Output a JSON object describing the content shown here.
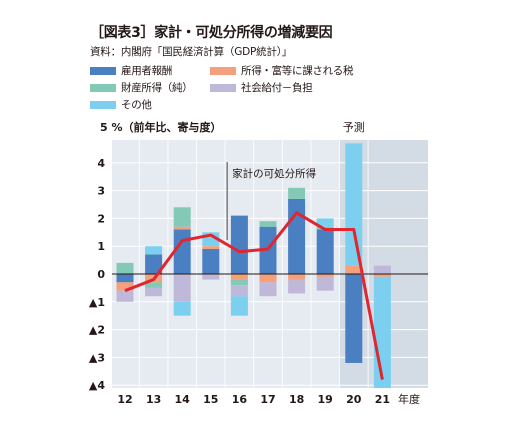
{
  "chart_data": {
    "type": "bar",
    "title": "［図表3］家計・可処分所得の増減要因",
    "source": "資料：内閣府「国民経済計算（GDP統計）」",
    "y_unit_label": "5 %（前年比、寄与度）",
    "x_unit_label": "年度",
    "categories": [
      "12",
      "13",
      "14",
      "15",
      "16",
      "17",
      "18",
      "19",
      "20",
      "21"
    ],
    "ylim": [
      -4,
      5
    ],
    "y_ticks": [
      {
        "value": 4,
        "label": "4"
      },
      {
        "value": 3,
        "label": "3"
      },
      {
        "value": 2,
        "label": "2"
      },
      {
        "value": 1,
        "label": "1"
      },
      {
        "value": 0,
        "label": "0"
      },
      {
        "value": -1,
        "label": "▲1"
      },
      {
        "value": -2,
        "label": "▲2"
      },
      {
        "value": -3,
        "label": "▲3"
      },
      {
        "value": -4,
        "label": "▲4"
      }
    ],
    "forecast_label": "予測",
    "forecast_categories": [
      "20",
      "21"
    ],
    "grid": true,
    "legend_placement": "top",
    "series": [
      {
        "name": "雇用者報酬",
        "color": "#4a7fc1",
        "values": [
          -0.3,
          0.7,
          1.6,
          0.9,
          2.1,
          1.7,
          2.7,
          1.6,
          -3.2,
          0.0
        ]
      },
      {
        "name": "所得・富等に課される税",
        "color": "#f4a07c",
        "values": [
          -0.3,
          -0.3,
          0.1,
          0.1,
          -0.2,
          -0.3,
          -0.2,
          -0.1,
          0.3,
          -0.1
        ]
      },
      {
        "name": "財産所得（純）",
        "color": "#84c8b6",
        "values": [
          0.4,
          -0.2,
          0.7,
          0.0,
          -0.2,
          0.2,
          0.4,
          0.1,
          0.0,
          0.0
        ]
      },
      {
        "name": "社会給付－負担",
        "color": "#c0b8d8",
        "values": [
          -0.4,
          -0.3,
          -1.0,
          -0.2,
          -0.4,
          -0.5,
          -0.5,
          -0.5,
          0.0,
          0.3
        ]
      },
      {
        "name": "その他",
        "color": "#7ccfef",
        "values": [
          0.0,
          0.3,
          -0.5,
          0.5,
          -0.7,
          0.0,
          0.0,
          0.3,
          4.4,
          -4.0
        ]
      }
    ],
    "line": {
      "name": "家計の可処分所得",
      "color": "#e0262e",
      "values": [
        -0.6,
        -0.2,
        1.2,
        1.4,
        0.8,
        0.9,
        2.2,
        1.6,
        1.6,
        -3.8
      ]
    },
    "annotation": "家計の可処分所得"
  }
}
